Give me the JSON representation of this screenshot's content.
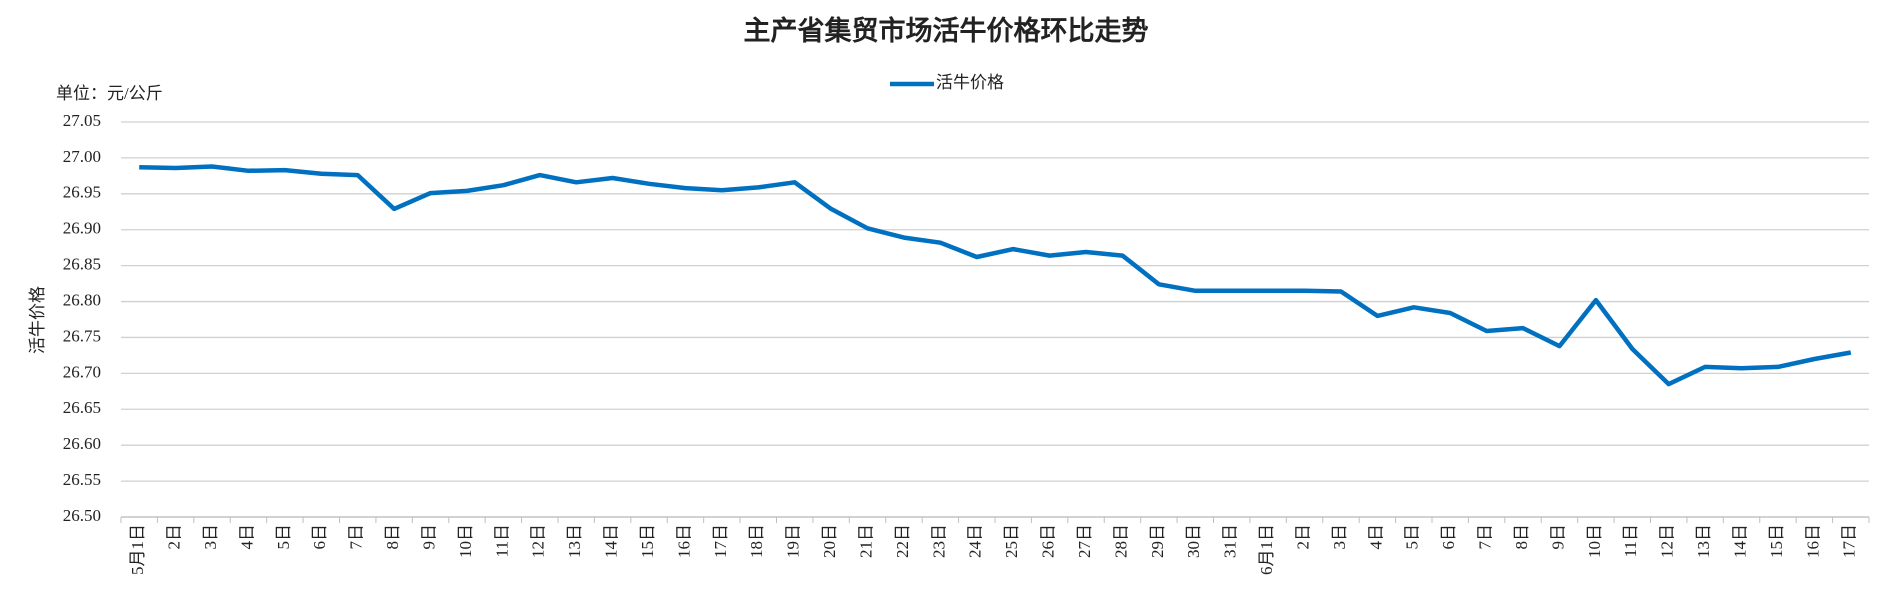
{
  "chart_data": {
    "type": "line",
    "title": "主产省集贸市场活牛价格环比走势",
    "unit_label": "单位：元/公斤",
    "y_label": "活牛价格",
    "categories": [
      "5月1日",
      "2日",
      "3日",
      "4日",
      "5日",
      "6日",
      "7日",
      "8日",
      "9日",
      "10日",
      "11日",
      "12日",
      "13日",
      "14日",
      "15日",
      "16日",
      "17日",
      "18日",
      "19日",
      "20日",
      "21日",
      "22日",
      "23日",
      "24日",
      "25日",
      "26日",
      "27日",
      "28日",
      "29日",
      "30日",
      "31日",
      "6月1日",
      "2日",
      "3日",
      "4日",
      "5日",
      "6日",
      "7日",
      "8日",
      "9日",
      "10日",
      "11日",
      "12日",
      "13日",
      "14日",
      "15日",
      "16日",
      "17日"
    ],
    "series": [
      {
        "name": "活牛价格",
        "color": "#0070c0",
        "values": [
          26.987,
          26.986,
          26.988,
          26.982,
          26.983,
          26.978,
          26.976,
          26.929,
          26.951,
          26.954,
          26.962,
          26.976,
          26.966,
          26.972,
          26.964,
          26.958,
          26.955,
          26.959,
          26.966,
          26.929,
          26.902,
          26.889,
          26.882,
          26.862,
          26.873,
          26.864,
          26.869,
          26.864,
          26.824,
          26.815,
          26.815,
          26.815,
          26.815,
          26.814,
          26.78,
          26.792,
          26.784,
          26.759,
          26.763,
          26.738,
          26.802,
          26.734,
          26.685,
          26.709,
          26.707,
          26.709,
          26.72,
          26.729
        ]
      }
    ],
    "ylim": [
      26.5,
      27.05
    ],
    "yticks": [
      {
        "value": 26.5,
        "label": "26.50"
      },
      26.55,
      {
        "value": 26.6,
        "label": "26.60"
      },
      26.65,
      {
        "value": 26.7,
        "label": "26.70"
      },
      26.75,
      {
        "value": 26.8,
        "label": "26.80"
      },
      26.85,
      {
        "value": 26.9,
        "label": "26.90"
      },
      26.95,
      {
        "value": 27.0,
        "label": "27.00"
      },
      27.05
    ],
    "grid": true,
    "legend": "top"
  }
}
